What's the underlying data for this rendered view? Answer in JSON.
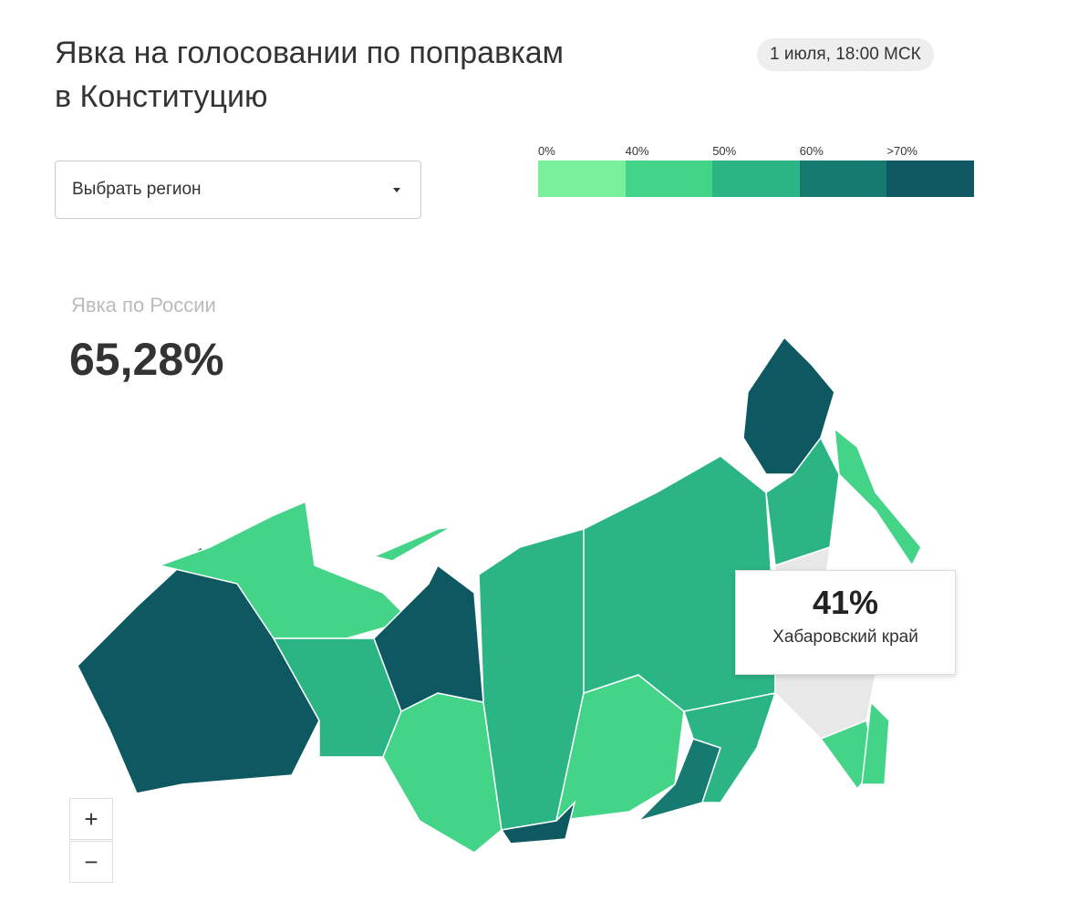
{
  "header": {
    "title_line1": "Явка на голосовании по поправкам",
    "title_line2": "в Конституцию",
    "timestamp": "1 июля, 18:00 МСК"
  },
  "region_select": {
    "placeholder": "Выбрать регион"
  },
  "legend": {
    "items": [
      {
        "label": "0%",
        "color": "#78f09c"
      },
      {
        "label": "40%",
        "color": "#44d487"
      },
      {
        "label": "50%",
        "color": "#2bb585"
      },
      {
        "label": "60%",
        "color": "#177a70"
      },
      {
        "label": ">70%",
        "color": "#0e5862"
      }
    ]
  },
  "national": {
    "label": "Явка по России",
    "value": "65,28%"
  },
  "tooltip": {
    "value": "41%",
    "region": "Хабаровский край"
  },
  "zoom": {
    "in": "+",
    "out": "−"
  }
}
